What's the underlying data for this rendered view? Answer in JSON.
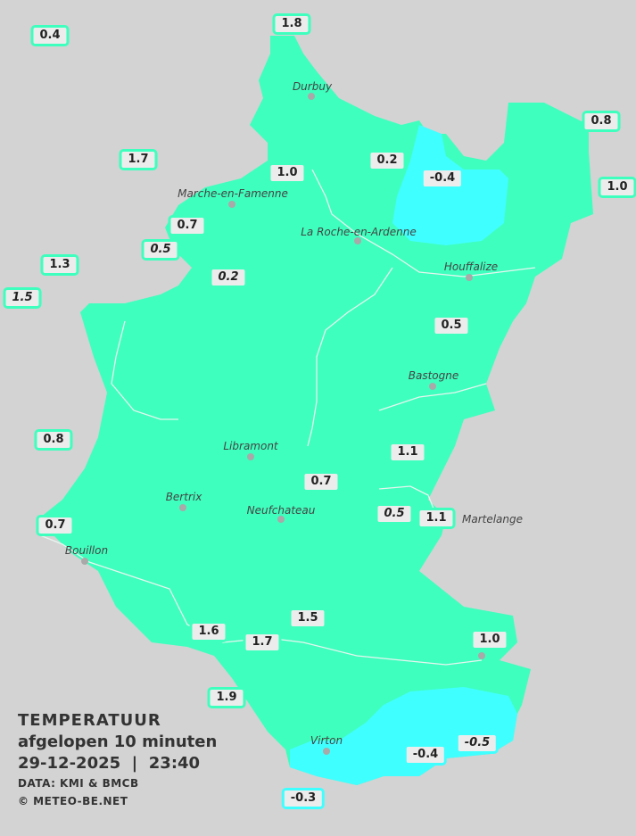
{
  "legend": {
    "title": "TEMPERATUUR",
    "period": "afgelopen 10 minuten",
    "datetime": "29-12-2025  |  23:40",
    "source": "DATA: KMI & BMCB",
    "copyright": "© METEO-BE.NET"
  },
  "colors": {
    "background": "#d3d3d3",
    "band_0_to_2": "#3effbe",
    "band_below_0": "#40ffff",
    "label_fill": "#ececec"
  },
  "towns": [
    "Durbuy",
    "Marche-en-Famenne",
    "La Roche-en-Ardenne",
    "Houffalize",
    "Bastogne",
    "Libramont",
    "Bertrix",
    "Neufchateau",
    "Bouillon",
    "Virton",
    "Martelange"
  ],
  "stations": [
    {
      "value": "0.4",
      "italic": false,
      "band": "band_0_to_2"
    },
    {
      "value": "1.8",
      "italic": false,
      "band": "band_0_to_2"
    },
    {
      "value": "0.8",
      "italic": false,
      "band": "band_0_to_2"
    },
    {
      "value": "1.0",
      "italic": false,
      "band": "band_0_to_2"
    },
    {
      "value": "1.7",
      "italic": false,
      "band": "band_0_to_2"
    },
    {
      "value": "1.0",
      "italic": false,
      "band": "band_0_to_2"
    },
    {
      "value": "0.2",
      "italic": false,
      "band": "band_0_to_2"
    },
    {
      "value": "-0.4",
      "italic": false,
      "band": "band_below_0"
    },
    {
      "value": "0.7",
      "italic": false,
      "band": "band_0_to_2"
    },
    {
      "value": "0.5",
      "italic": true,
      "band": "band_0_to_2"
    },
    {
      "value": "1.3",
      "italic": false,
      "band": "band_0_to_2"
    },
    {
      "value": "1.5",
      "italic": true,
      "band": "band_0_to_2"
    },
    {
      "value": "0.2",
      "italic": true,
      "band": "band_0_to_2"
    },
    {
      "value": "0.5",
      "italic": false,
      "band": "band_0_to_2"
    },
    {
      "value": "0.8",
      "italic": false,
      "band": "band_0_to_2"
    },
    {
      "value": "1.1",
      "italic": false,
      "band": "band_0_to_2"
    },
    {
      "value": "0.7",
      "italic": false,
      "band": "band_0_to_2"
    },
    {
      "value": "0.5",
      "italic": true,
      "band": "band_0_to_2"
    },
    {
      "value": "1.1",
      "italic": false,
      "band": "band_0_to_2"
    },
    {
      "value": "0.7",
      "italic": false,
      "band": "band_0_to_2"
    },
    {
      "value": "1.5",
      "italic": false,
      "band": "band_0_to_2"
    },
    {
      "value": "1.6",
      "italic": false,
      "band": "band_0_to_2"
    },
    {
      "value": "1.7",
      "italic": false,
      "band": "band_0_to_2"
    },
    {
      "value": "1.0",
      "italic": false,
      "band": "band_0_to_2"
    },
    {
      "value": "1.9",
      "italic": false,
      "band": "band_0_to_2"
    },
    {
      "value": "-0.4",
      "italic": false,
      "band": "band_below_0"
    },
    {
      "value": "-0.5",
      "italic": true,
      "band": "band_below_0"
    },
    {
      "value": "-0.3",
      "italic": false,
      "band": "band_below_0"
    }
  ]
}
